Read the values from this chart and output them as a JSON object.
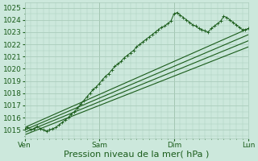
{
  "bg_color": "#cce8dc",
  "grid_color": "#aaccbb",
  "line_color": "#1a5c1a",
  "ylim": [
    1014.3,
    1025.4
  ],
  "xlim": [
    0,
    72
  ],
  "yticks": [
    1015,
    1016,
    1017,
    1018,
    1019,
    1020,
    1021,
    1022,
    1023,
    1024,
    1025
  ],
  "xtick_positions": [
    0,
    24,
    48,
    72
  ],
  "xtick_labels": [
    "Ven",
    "Sam",
    "Dim",
    "Lun"
  ],
  "xlabel": "Pression niveau de la mer( hPa )",
  "xlabel_fontsize": 8,
  "tick_fontsize": 6.5,
  "noisy_x": [
    0,
    1,
    2,
    3,
    4,
    5,
    6,
    7,
    8,
    9,
    10,
    11,
    12,
    13,
    14,
    15,
    16,
    17,
    18,
    19,
    20,
    21,
    22,
    23,
    24,
    25,
    26,
    27,
    28,
    29,
    30,
    31,
    32,
    33,
    34,
    35,
    36,
    37,
    38,
    39,
    40,
    41,
    42,
    43,
    44,
    45,
    46,
    47,
    48,
    49,
    50,
    51,
    52,
    53,
    54,
    55,
    56,
    57,
    58,
    59,
    60,
    61,
    62,
    63,
    64,
    65,
    66,
    67,
    68,
    69,
    70,
    71,
    72
  ],
  "noisy_y": [
    1015.1,
    1015.2,
    1015.0,
    1015.1,
    1015.3,
    1015.1,
    1015.0,
    1014.9,
    1015.0,
    1015.1,
    1015.2,
    1015.4,
    1015.6,
    1015.8,
    1016.0,
    1016.3,
    1016.5,
    1016.8,
    1017.1,
    1017.4,
    1017.7,
    1018.0,
    1018.3,
    1018.5,
    1018.8,
    1019.1,
    1019.4,
    1019.6,
    1019.9,
    1020.2,
    1020.4,
    1020.6,
    1020.9,
    1021.1,
    1021.3,
    1021.5,
    1021.8,
    1022.0,
    1022.2,
    1022.4,
    1022.6,
    1022.8,
    1023.0,
    1023.2,
    1023.4,
    1023.5,
    1023.7,
    1023.9,
    1024.5,
    1024.6,
    1024.4,
    1024.2,
    1024.0,
    1023.8,
    1023.6,
    1023.5,
    1023.3,
    1023.2,
    1023.1,
    1023.0,
    1023.3,
    1023.5,
    1023.7,
    1023.9,
    1024.3,
    1024.2,
    1024.0,
    1023.8,
    1023.6,
    1023.4,
    1023.2,
    1023.2,
    1023.3
  ],
  "smooth_lines": [
    [
      [
        0,
        1015.2
      ],
      [
        72,
        1023.3
      ]
    ],
    [
      [
        0,
        1015.0
      ],
      [
        72,
        1022.8
      ]
    ],
    [
      [
        0,
        1014.8
      ],
      [
        72,
        1022.3
      ]
    ],
    [
      [
        0,
        1014.6
      ],
      [
        72,
        1021.8
      ]
    ]
  ]
}
